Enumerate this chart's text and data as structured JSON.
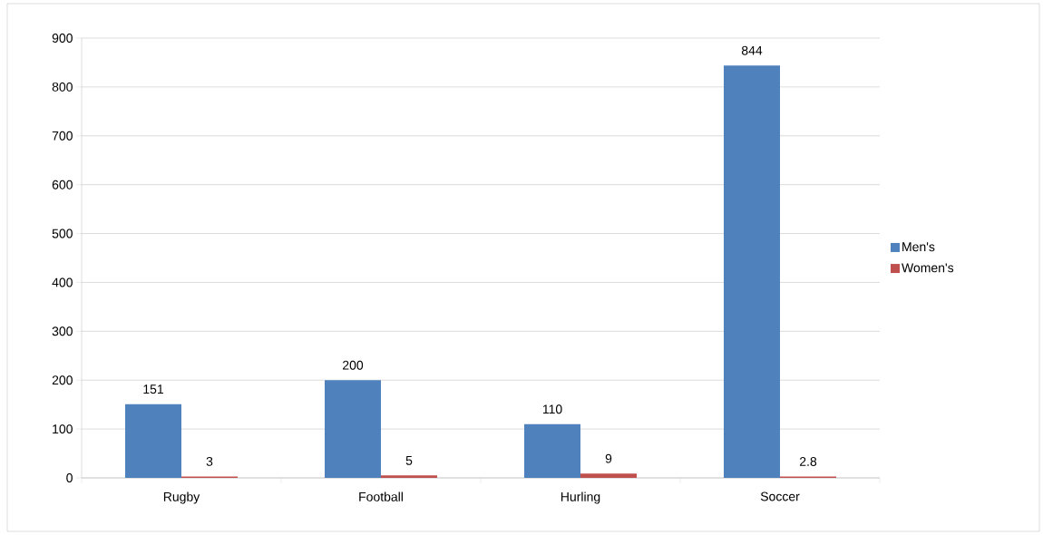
{
  "chart_data": {
    "type": "bar",
    "categories": [
      "Rugby",
      "Football",
      "Hurling",
      "Soccer"
    ],
    "series": [
      {
        "name": "Men's",
        "color": "#4f81bd",
        "values": [
          151,
          200,
          110,
          844
        ]
      },
      {
        "name": "Women's",
        "color": "#c0504d",
        "values": [
          3,
          5,
          9,
          2.8
        ]
      }
    ],
    "ylim": [
      0,
      900
    ],
    "yticks": [
      0,
      100,
      200,
      300,
      400,
      500,
      600,
      700,
      800,
      900
    ],
    "grid": "y",
    "legend": "right",
    "data_labels": true
  }
}
